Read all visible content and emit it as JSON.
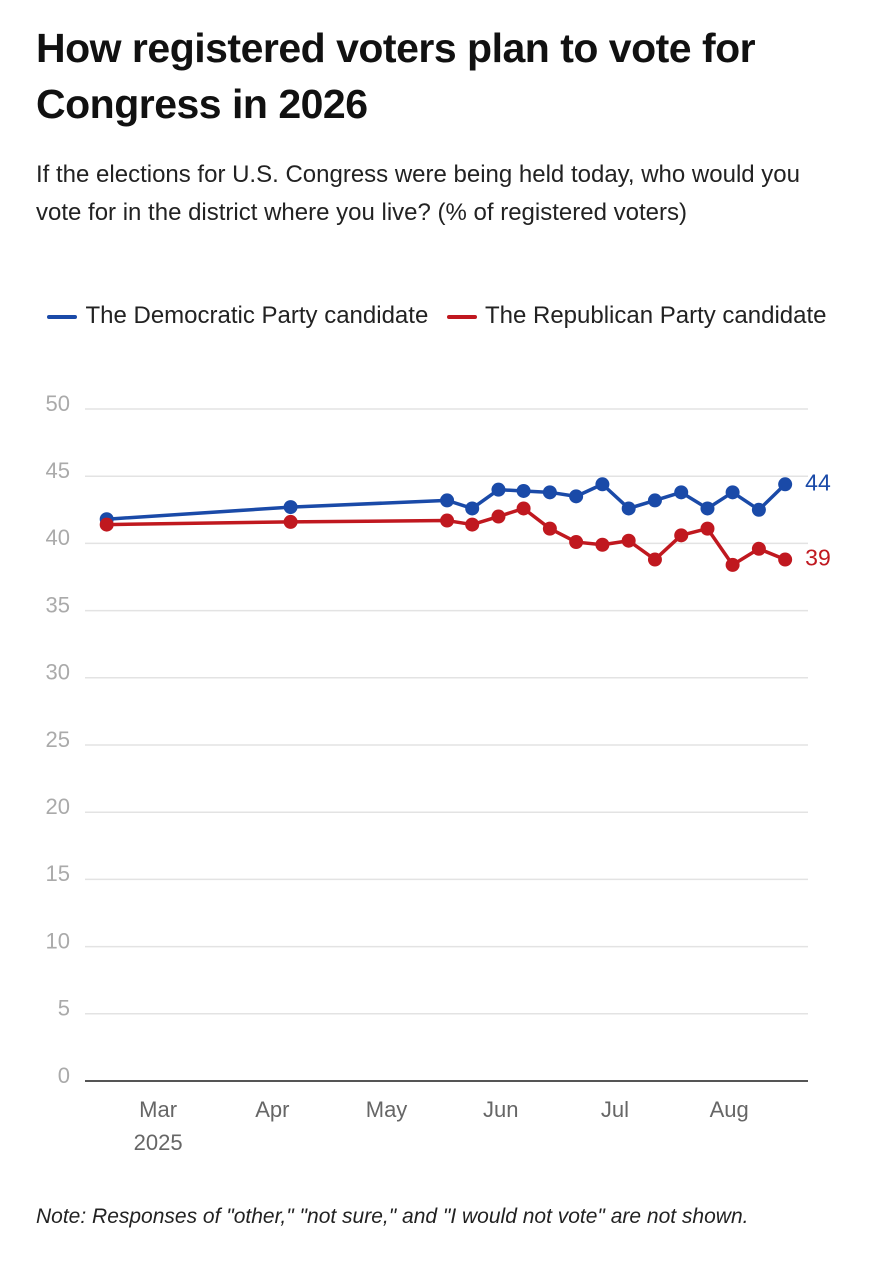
{
  "chart_data": {
    "type": "line",
    "title": "How registered voters plan to vote for Congress in 2026",
    "subtitle": "If the elections for U.S. Congress were being held today, who would you vote for in the district where you live? (% of registered voters)",
    "note": "Note: Responses of \"other,\" \"not sure,\" and \"I would not vote\" are not shown.",
    "x": [
      2.55,
      4.16,
      5.53,
      5.75,
      5.98,
      6.2,
      6.43,
      6.66,
      6.89,
      7.12,
      7.35,
      7.58,
      7.81,
      8.03,
      8.26,
      8.49
    ],
    "xlim": [
      2.36,
      8.69
    ],
    "xticks": [
      {
        "value": 3,
        "label": "Mar"
      },
      {
        "value": 4,
        "label": "Apr"
      },
      {
        "value": 5,
        "label": "May"
      },
      {
        "value": 6,
        "label": "Jun"
      },
      {
        "value": 7,
        "label": "Jul"
      },
      {
        "value": 8,
        "label": "Aug"
      }
    ],
    "x_year_label": "2025",
    "ylim": [
      0,
      50
    ],
    "yticks": [
      0,
      5,
      10,
      15,
      20,
      25,
      30,
      35,
      40,
      45,
      50
    ],
    "grid": true,
    "series": [
      {
        "name": "The Democratic Party candidate",
        "color": "#1a4aa8",
        "end_label": "44",
        "values": [
          41.8,
          42.7,
          43.2,
          42.6,
          44.0,
          43.9,
          43.8,
          43.5,
          44.4,
          42.6,
          43.2,
          43.8,
          42.6,
          43.8,
          42.5,
          44.4
        ]
      },
      {
        "name": "The Republican Party candidate",
        "color": "#c0181f",
        "end_label": "39",
        "values": [
          41.4,
          41.6,
          41.7,
          41.4,
          42.0,
          42.6,
          41.1,
          40.1,
          39.9,
          40.2,
          38.8,
          40.6,
          41.1,
          38.4,
          39.6,
          38.8
        ]
      }
    ]
  }
}
